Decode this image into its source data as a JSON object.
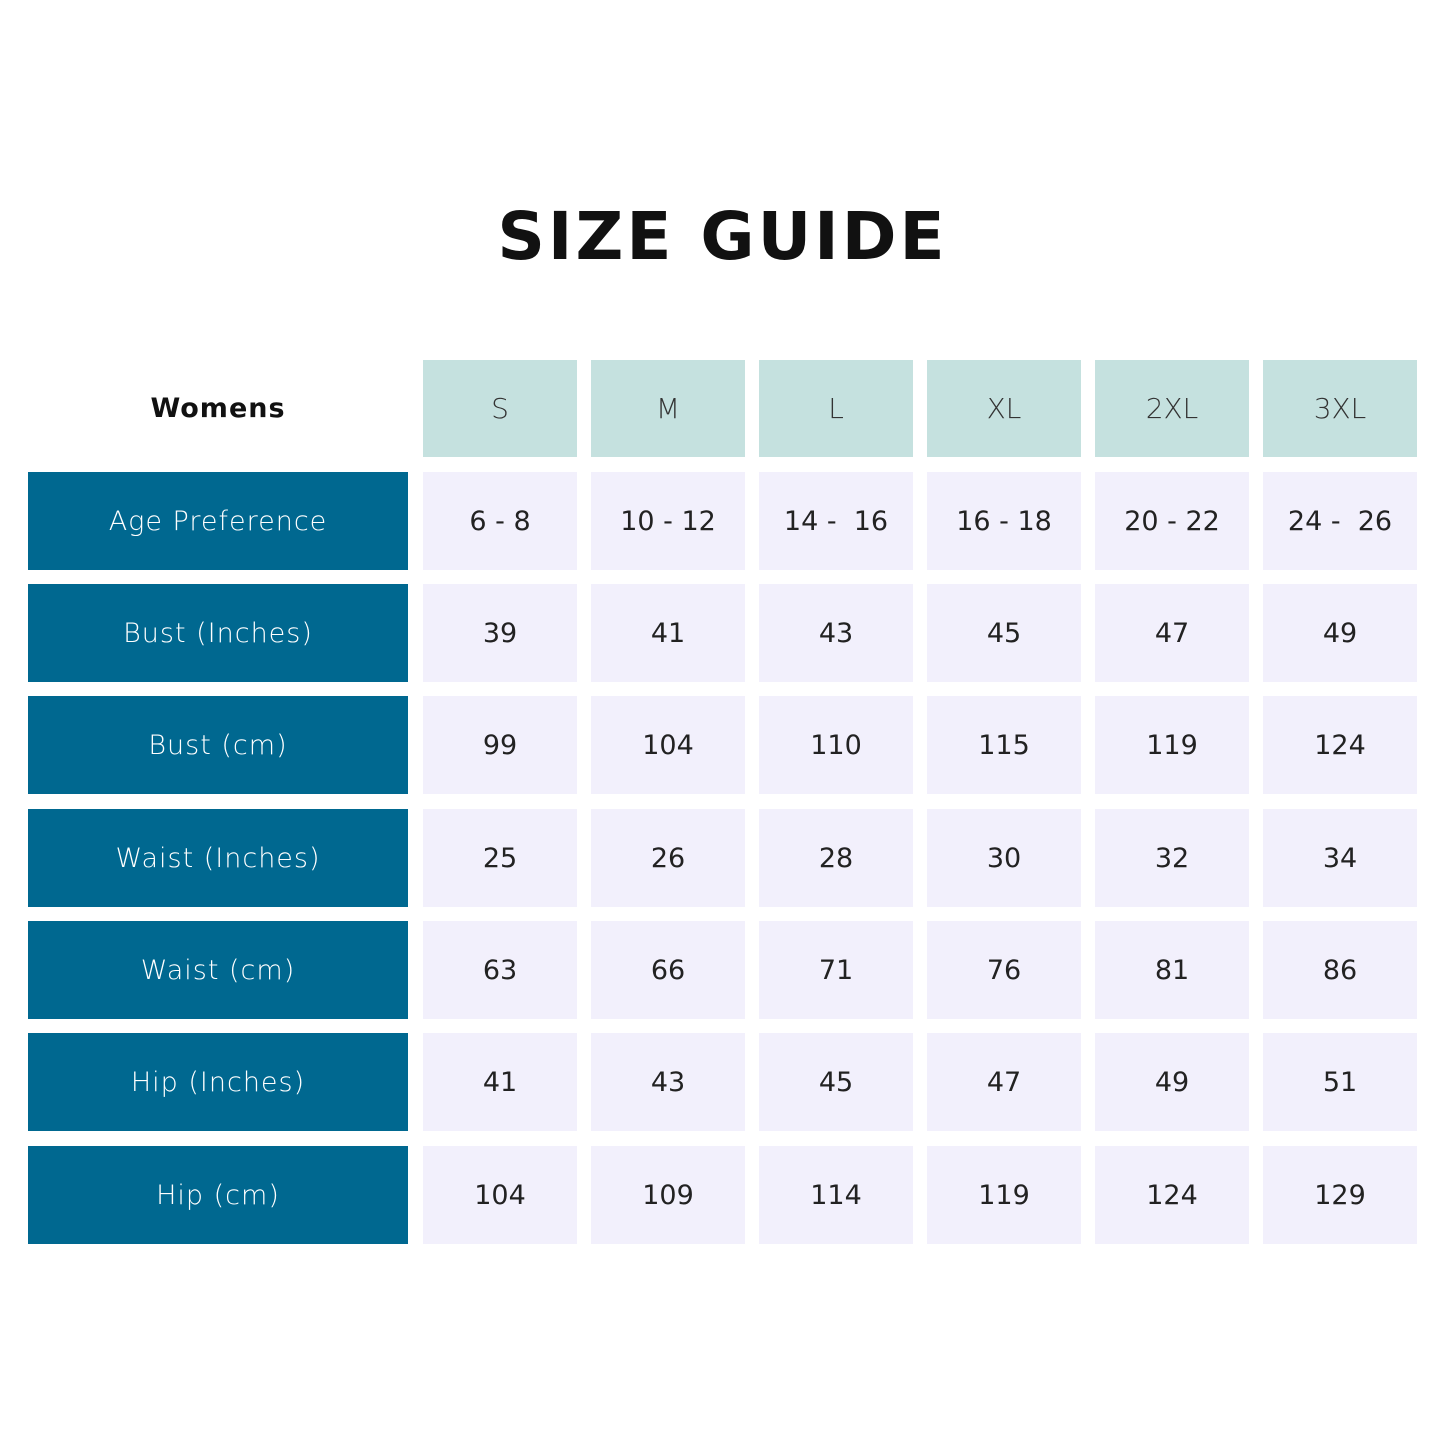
{
  "title": "SIZE GUIDE",
  "table": {
    "corner_label": "Womens",
    "columns": [
      "S",
      "M",
      "L",
      "XL",
      "2XL",
      "3XL"
    ],
    "rows": [
      {
        "label": "Age Preference",
        "values": [
          "6 - 8",
          "10 - 12",
          "14 -  16",
          "16 - 18",
          "20 - 22",
          "24 -  26"
        ]
      },
      {
        "label": "Bust (Inches)",
        "values": [
          "39",
          "41",
          "43",
          "45",
          "47",
          "49"
        ]
      },
      {
        "label": "Bust (cm)",
        "values": [
          "99",
          "104",
          "110",
          "115",
          "119",
          "124"
        ]
      },
      {
        "label": "Waist (Inches)",
        "values": [
          "25",
          "26",
          "28",
          "30",
          "32",
          "34"
        ]
      },
      {
        "label": "Waist (cm)",
        "values": [
          "63",
          "66",
          "71",
          "76",
          "81",
          "86"
        ]
      },
      {
        "label": "Hip (Inches)",
        "values": [
          "41",
          "43",
          "45",
          "47",
          "49",
          "51"
        ]
      },
      {
        "label": "Hip (cm)",
        "values": [
          "104",
          "109",
          "114",
          "119",
          "124",
          "129"
        ]
      }
    ]
  },
  "colors": {
    "header_bg": "#c5e1df",
    "label_bg": "#006890",
    "cell_bg": "#f2f0fc"
  }
}
